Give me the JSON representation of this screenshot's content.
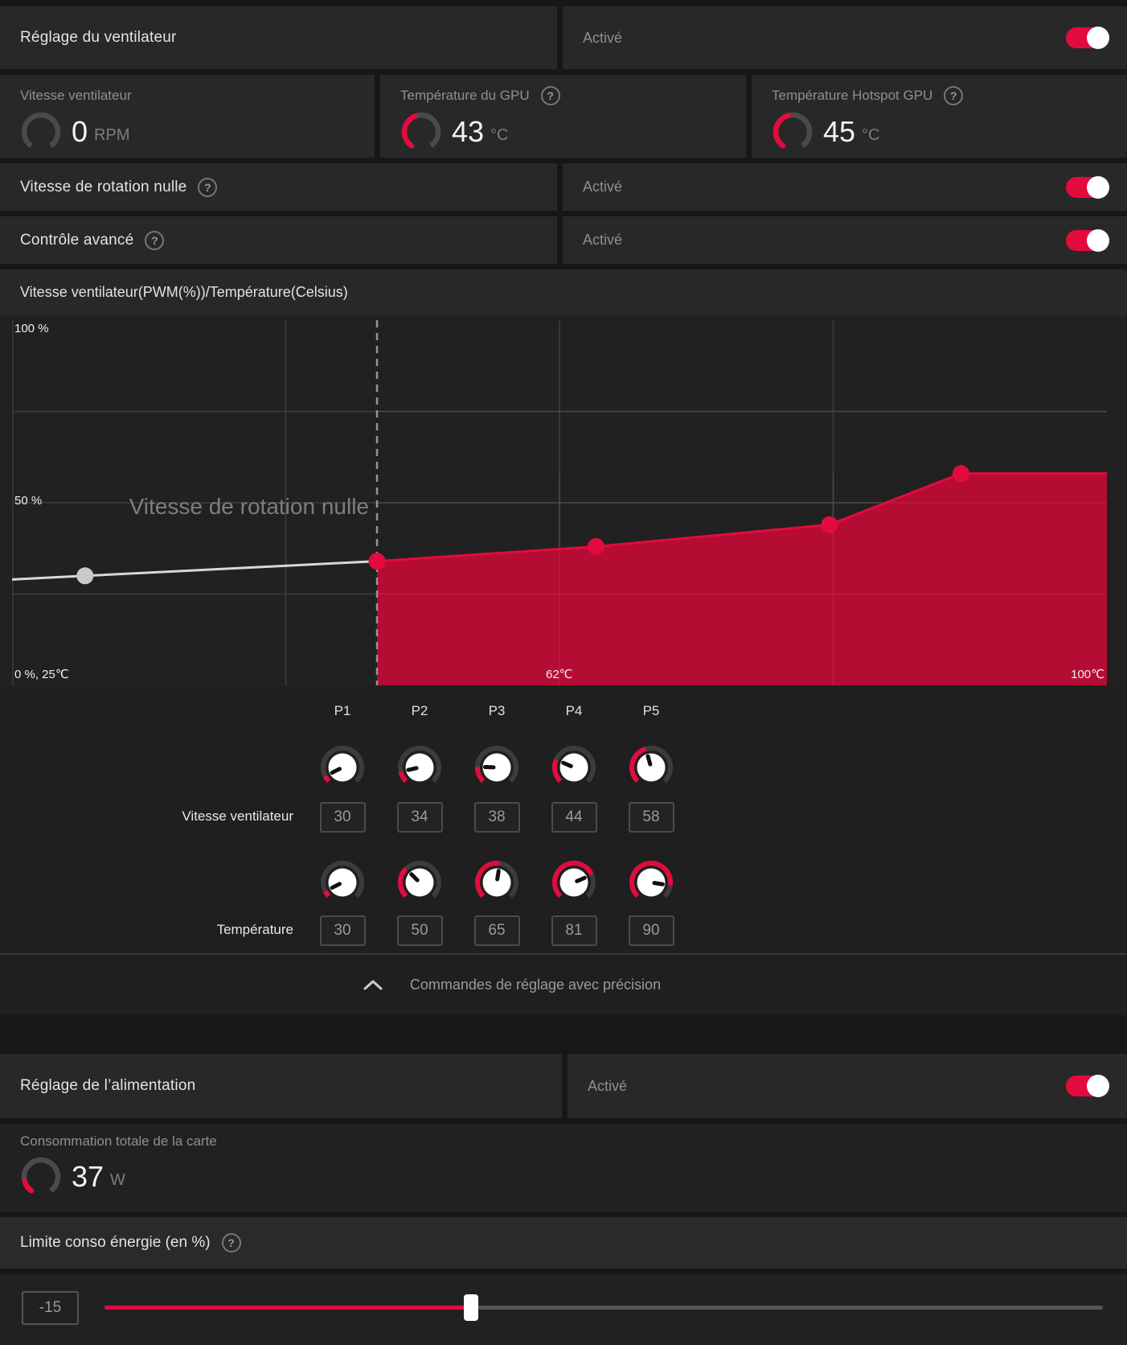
{
  "theme": {
    "accent": "#e30b3d",
    "chart_fill": "#b50c33",
    "curve_white": "#d9d9d9",
    "point_gray": "#c9c9c9",
    "gauge_track": "#4a4a4a",
    "knob_track": "#3c3c3c",
    "grid_line": "#3d3d3d",
    "dashed_line": "#969696"
  },
  "fan_section": {
    "title": "Réglage du ventilateur",
    "status": "Activé",
    "enabled": true,
    "gauges": [
      {
        "label": "Vitesse ventilateur",
        "value": "0",
        "unit": "RPM",
        "fraction": 0,
        "help": false
      },
      {
        "label": "Température du GPU",
        "value": "43",
        "unit": "°C",
        "fraction": 0.43,
        "help": true
      },
      {
        "label": "Température Hotspot GPU",
        "value": "45",
        "unit": "°C",
        "fraction": 0.45,
        "help": true
      }
    ],
    "rows": [
      {
        "label": "Vitesse de rotation nulle",
        "status": "Activé",
        "enabled": true
      },
      {
        "label": "Contrôle avancé",
        "status": "Activé",
        "enabled": true
      }
    ],
    "chart_header": "Vitesse ventilateur(PWM(%))/Température(Celsius)",
    "help_glyph": "?"
  },
  "chart_data": {
    "type": "area",
    "title": "Vitesse ventilateur(PWM(%))/Température(Celsius)",
    "x_axis": {
      "label": "Température (Celsius)",
      "min": 25,
      "max": 100,
      "gridline_temps": [
        43.75,
        62.5,
        81.25
      ]
    },
    "y_axis": {
      "label": "Vitesse ventilateur PWM (%)",
      "min": 0,
      "max": 100,
      "gridline_pcts": [
        25,
        50,
        75
      ]
    },
    "points": [
      {
        "name": "P1",
        "temp": 30,
        "speed": 30
      },
      {
        "name": "P2",
        "temp": 50,
        "speed": 34
      },
      {
        "name": "P3",
        "temp": 65,
        "speed": 38
      },
      {
        "name": "P4",
        "temp": 81,
        "speed": 44
      },
      {
        "name": "P5",
        "temp": 90,
        "speed": 58
      }
    ],
    "zero_rpm_boundary_temp": 50,
    "watermark": "Vitesse de rotation nulle",
    "labels": {
      "top_left": "100 %",
      "mid_left": "50 %",
      "bottom_left": "0 %, 25℃",
      "bottom_mid": "62℃",
      "bottom_right": "100℃"
    },
    "legend": "none",
    "grid": true
  },
  "tuning": {
    "fan_label": "Vitesse ventilateur",
    "temp_label": "Température",
    "knob_min": 25,
    "knob_max": 100,
    "expander_label": "Commandes de réglage avec précision"
  },
  "power_section": {
    "title": "Réglage de l’alimentation",
    "status": "Activé",
    "enabled": true,
    "gauge": {
      "label": "Consommation totale de la carte",
      "value": "37",
      "unit": "W",
      "fraction": 0.14
    },
    "limit_label": "Limite conso énergie (en %)",
    "slider": {
      "value": "-15",
      "fraction": 0.367
    }
  }
}
